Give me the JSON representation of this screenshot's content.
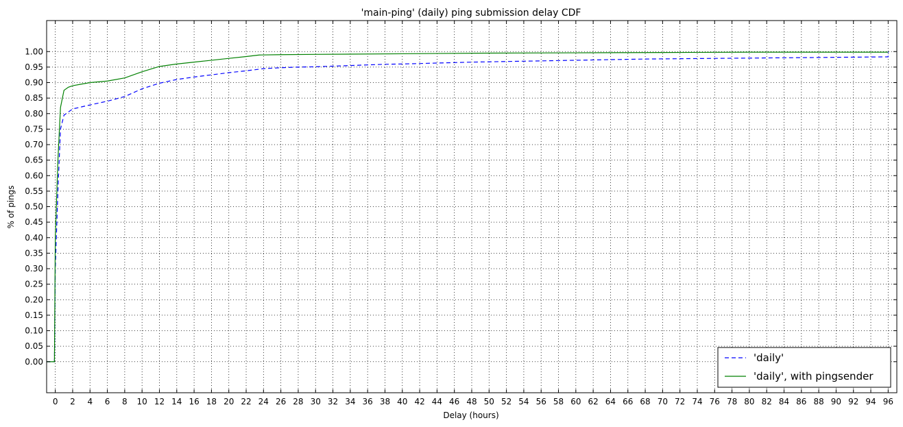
{
  "chart_data": {
    "type": "line",
    "title": "'main-ping' (daily) ping submission delay CDF",
    "xlabel": "Delay (hours)",
    "ylabel": "% of pings",
    "xlim": [
      -1,
      97
    ],
    "ylim": [
      -0.1,
      1.1
    ],
    "xticks": [
      0,
      2,
      4,
      6,
      8,
      10,
      12,
      14,
      16,
      18,
      20,
      22,
      24,
      26,
      28,
      30,
      32,
      34,
      36,
      38,
      40,
      42,
      44,
      46,
      48,
      50,
      52,
      54,
      56,
      58,
      60,
      62,
      64,
      66,
      68,
      70,
      72,
      74,
      76,
      78,
      80,
      82,
      84,
      86,
      88,
      90,
      92,
      94,
      96
    ],
    "yticks": [
      0.0,
      0.05,
      0.1,
      0.15,
      0.2,
      0.25,
      0.3,
      0.35,
      0.4,
      0.45,
      0.5,
      0.55,
      0.6,
      0.65,
      0.7,
      0.75,
      0.8,
      0.85,
      0.9,
      0.95,
      1.0
    ],
    "ytick_labels": [
      "0.00",
      "0.05",
      "0.10",
      "0.15",
      "0.20",
      "0.25",
      "0.30",
      "0.35",
      "0.40",
      "0.45",
      "0.50",
      "0.55",
      "0.60",
      "0.65",
      "0.70",
      "0.75",
      "0.80",
      "0.85",
      "0.90",
      "0.95",
      "1.00"
    ],
    "grid": true,
    "legend_position": "lower-right",
    "series": [
      {
        "name": "'daily'",
        "color": "#0000ff",
        "dash": "dashed",
        "x": [
          -1,
          -0.1,
          0,
          0.3,
          0.6,
          1,
          2,
          4,
          6,
          8,
          10,
          12,
          14,
          16,
          18,
          20,
          22,
          24,
          26,
          28,
          30,
          32,
          34,
          36,
          38,
          40,
          44,
          48,
          52,
          56,
          60,
          64,
          68,
          72,
          76,
          80,
          84,
          88,
          92,
          96,
          96
        ],
        "y": [
          0.0,
          0.0,
          0.3,
          0.55,
          0.75,
          0.795,
          0.815,
          0.828,
          0.84,
          0.855,
          0.88,
          0.898,
          0.91,
          0.918,
          0.925,
          0.932,
          0.938,
          0.945,
          0.948,
          0.95,
          0.951,
          0.953,
          0.955,
          0.957,
          0.959,
          0.96,
          0.963,
          0.966,
          0.968,
          0.97,
          0.972,
          0.974,
          0.976,
          0.977,
          0.978,
          0.979,
          0.98,
          0.981,
          0.982,
          0.983,
          1.0
        ]
      },
      {
        "name": "'daily', with pingsender",
        "color": "#008000",
        "dash": "solid",
        "x": [
          -1,
          -0.1,
          0,
          0.3,
          0.6,
          1,
          1.5,
          2,
          3,
          4,
          6,
          8,
          10,
          12,
          14,
          16,
          18,
          20,
          22,
          23.5,
          26,
          30,
          40,
          50,
          60,
          70,
          80,
          96
        ],
        "y": [
          0.0,
          0.0,
          0.4,
          0.65,
          0.82,
          0.875,
          0.885,
          0.89,
          0.895,
          0.9,
          0.905,
          0.915,
          0.935,
          0.952,
          0.96,
          0.966,
          0.972,
          0.978,
          0.984,
          0.989,
          0.99,
          0.991,
          0.993,
          0.995,
          0.996,
          0.997,
          0.998,
          0.998
        ]
      }
    ]
  }
}
